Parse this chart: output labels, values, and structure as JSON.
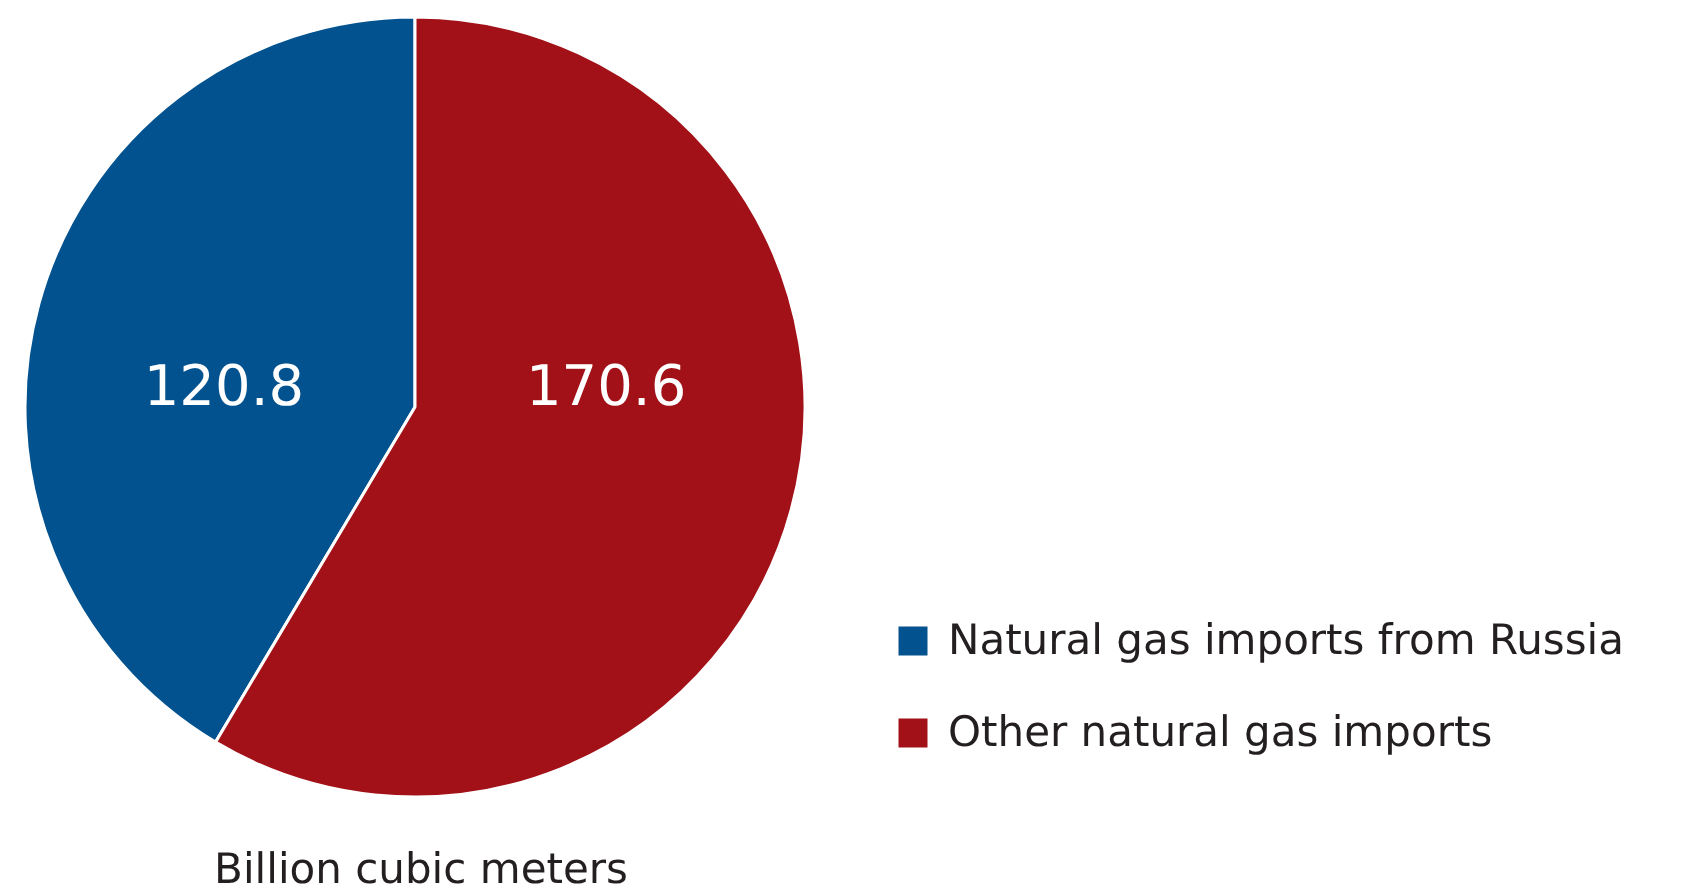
{
  "chart_data": {
    "type": "pie",
    "categories": [
      "Natural gas imports from Russia",
      "Other natural gas imports"
    ],
    "values": [
      120.8,
      170.6
    ],
    "colors": [
      "#02528f",
      "#a11117"
    ],
    "data_labels": true,
    "legend": "bottom right",
    "annotations": [
      "Billion cubic meters"
    ]
  }
}
